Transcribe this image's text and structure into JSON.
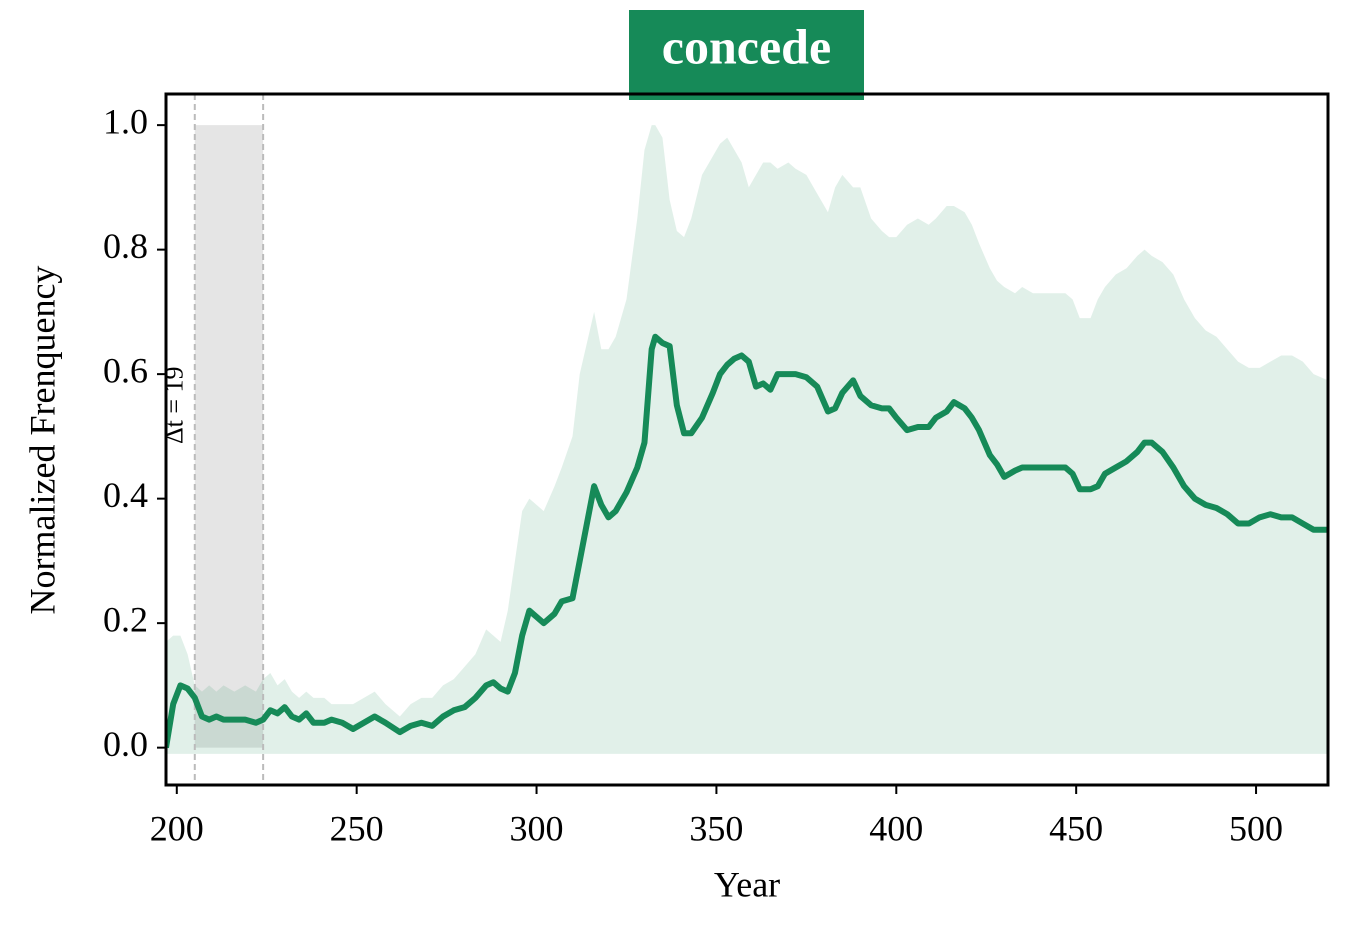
{
  "chart_data": {
    "type": "line",
    "title": "concede",
    "x_label": "Year",
    "y_label": "Normalized Frenquency",
    "color": "#168a58",
    "band_color": "#168a58",
    "xlim": [
      197,
      520
    ],
    "ylim": [
      -0.06,
      1.05
    ],
    "xticks": [
      200,
      250,
      300,
      350,
      400,
      450,
      500
    ],
    "yticks": [
      {
        "value": 0,
        "label": "0.0"
      },
      {
        "value": 0.2,
        "label": "0.2"
      },
      {
        "value": 0.4,
        "label": "0.4"
      },
      {
        "value": 0.6,
        "label": "0.6"
      },
      {
        "value": 0.8,
        "label": "0.8"
      },
      {
        "value": 1,
        "label": "1.0"
      }
    ],
    "shade": {
      "start": 205,
      "end": 224,
      "bottom": 0,
      "top": 1,
      "label": "Δt = 19"
    },
    "x": [
      197,
      199,
      201,
      203,
      205,
      207,
      209,
      211,
      213,
      216,
      219,
      222,
      224,
      226,
      228,
      230,
      232,
      234,
      236,
      238,
      241,
      243,
      246,
      249,
      252,
      255,
      258,
      262,
      265,
      268,
      271,
      274,
      277,
      280,
      283,
      286,
      288,
      290,
      292,
      294,
      296,
      298,
      300,
      302,
      305,
      307,
      310,
      312,
      314,
      316,
      318,
      320,
      322,
      325,
      328,
      330,
      332,
      333,
      335,
      337,
      339,
      341,
      343,
      346,
      349,
      351,
      353,
      355,
      357,
      359,
      361,
      363,
      365,
      367,
      370,
      372,
      375,
      378,
      381,
      383,
      385,
      388,
      390,
      393,
      396,
      398,
      400,
      403,
      406,
      409,
      411,
      414,
      416,
      419,
      421,
      423,
      426,
      428,
      430,
      433,
      435,
      438,
      441,
      444,
      447,
      449,
      451,
      454,
      456,
      458,
      461,
      464,
      467,
      469,
      471,
      474,
      477,
      480,
      483,
      486,
      489,
      492,
      495,
      498,
      501,
      504,
      507,
      510,
      513,
      516,
      520
    ],
    "values": [
      0.0,
      0.07,
      0.1,
      0.095,
      0.08,
      0.05,
      0.045,
      0.05,
      0.045,
      0.045,
      0.045,
      0.04,
      0.045,
      0.06,
      0.055,
      0.065,
      0.05,
      0.045,
      0.055,
      0.04,
      0.04,
      0.045,
      0.04,
      0.03,
      0.04,
      0.05,
      0.04,
      0.025,
      0.035,
      0.04,
      0.035,
      0.05,
      0.06,
      0.065,
      0.08,
      0.1,
      0.105,
      0.095,
      0.09,
      0.12,
      0.18,
      0.22,
      0.21,
      0.2,
      0.215,
      0.235,
      0.24,
      0.3,
      0.36,
      0.42,
      0.39,
      0.37,
      0.38,
      0.41,
      0.45,
      0.49,
      0.64,
      0.66,
      0.65,
      0.645,
      0.55,
      0.505,
      0.505,
      0.53,
      0.57,
      0.6,
      0.615,
      0.625,
      0.63,
      0.62,
      0.58,
      0.585,
      0.575,
      0.6,
      0.6,
      0.6,
      0.595,
      0.58,
      0.54,
      0.545,
      0.57,
      0.59,
      0.565,
      0.55,
      0.545,
      0.545,
      0.53,
      0.51,
      0.515,
      0.515,
      0.53,
      0.54,
      0.555,
      0.545,
      0.53,
      0.51,
      0.47,
      0.455,
      0.435,
      0.445,
      0.45,
      0.45,
      0.45,
      0.45,
      0.45,
      0.44,
      0.415,
      0.415,
      0.42,
      0.44,
      0.45,
      0.46,
      0.475,
      0.49,
      0.49,
      0.475,
      0.45,
      0.42,
      0.4,
      0.39,
      0.385,
      0.375,
      0.36,
      0.36,
      0.37,
      0.375,
      0.37,
      0.37,
      0.36,
      0.35,
      0.35
    ],
    "band_upper": [
      0.17,
      0.18,
      0.18,
      0.15,
      0.1,
      0.09,
      0.1,
      0.09,
      0.1,
      0.09,
      0.1,
      0.09,
      0.11,
      0.12,
      0.1,
      0.11,
      0.09,
      0.08,
      0.09,
      0.08,
      0.08,
      0.07,
      0.07,
      0.07,
      0.08,
      0.09,
      0.07,
      0.05,
      0.07,
      0.08,
      0.08,
      0.1,
      0.11,
      0.13,
      0.15,
      0.19,
      0.18,
      0.17,
      0.22,
      0.3,
      0.38,
      0.4,
      0.39,
      0.38,
      0.42,
      0.45,
      0.5,
      0.6,
      0.65,
      0.7,
      0.64,
      0.64,
      0.66,
      0.72,
      0.85,
      0.96,
      1.0,
      1.0,
      0.98,
      0.88,
      0.83,
      0.82,
      0.85,
      0.92,
      0.95,
      0.97,
      0.98,
      0.96,
      0.94,
      0.9,
      0.92,
      0.94,
      0.94,
      0.93,
      0.94,
      0.93,
      0.92,
      0.89,
      0.86,
      0.9,
      0.92,
      0.9,
      0.9,
      0.85,
      0.83,
      0.82,
      0.82,
      0.84,
      0.85,
      0.84,
      0.85,
      0.87,
      0.87,
      0.86,
      0.84,
      0.81,
      0.77,
      0.75,
      0.74,
      0.73,
      0.74,
      0.73,
      0.73,
      0.73,
      0.73,
      0.72,
      0.69,
      0.69,
      0.72,
      0.74,
      0.76,
      0.77,
      0.79,
      0.8,
      0.79,
      0.78,
      0.76,
      0.72,
      0.69,
      0.67,
      0.66,
      0.64,
      0.62,
      0.61,
      0.61,
      0.62,
      0.63,
      0.63,
      0.62,
      0.6,
      0.59
    ],
    "band_lower": [
      -0.01,
      -0.01,
      -0.01,
      -0.01,
      -0.01,
      -0.01,
      -0.01,
      -0.01,
      -0.01,
      -0.01,
      -0.01,
      -0.01,
      -0.01,
      -0.01,
      -0.01,
      -0.01,
      -0.01,
      -0.01,
      -0.01,
      -0.01,
      -0.01,
      -0.01,
      -0.01,
      -0.01,
      -0.01,
      -0.01,
      -0.01,
      -0.01,
      -0.01,
      -0.01,
      -0.01,
      -0.01,
      -0.01,
      -0.01,
      -0.01,
      -0.01,
      -0.01,
      -0.01,
      -0.01,
      -0.01,
      -0.01,
      -0.01,
      -0.01,
      -0.01,
      -0.01,
      -0.01,
      -0.01,
      -0.01,
      -0.01,
      -0.01,
      -0.01,
      -0.01,
      -0.01,
      -0.01,
      -0.01,
      -0.01,
      -0.01,
      -0.01,
      -0.01,
      -0.01,
      -0.01,
      -0.01,
      -0.01,
      -0.01,
      -0.01,
      -0.01,
      -0.01,
      -0.01,
      -0.01,
      -0.01,
      -0.01,
      -0.01,
      -0.01,
      -0.01,
      -0.01,
      -0.01,
      -0.01,
      -0.01,
      -0.01,
      -0.01,
      -0.01,
      -0.01,
      -0.01,
      -0.01,
      -0.01,
      -0.01,
      -0.01,
      -0.01,
      -0.01,
      -0.01,
      -0.01,
      -0.01,
      -0.01,
      -0.01,
      -0.01,
      -0.01,
      -0.01,
      -0.01,
      -0.01,
      -0.01,
      -0.01,
      -0.01,
      -0.01,
      -0.01,
      -0.01,
      -0.01,
      -0.01,
      -0.01,
      -0.01,
      -0.01,
      -0.01,
      -0.01,
      -0.01,
      -0.01,
      -0.01,
      -0.01,
      -0.01,
      -0.01,
      -0.01,
      -0.01,
      -0.01,
      -0.01,
      -0.01,
      -0.01,
      -0.01,
      -0.01,
      -0.01,
      -0.01,
      -0.01,
      -0.01,
      -0.01
    ]
  }
}
